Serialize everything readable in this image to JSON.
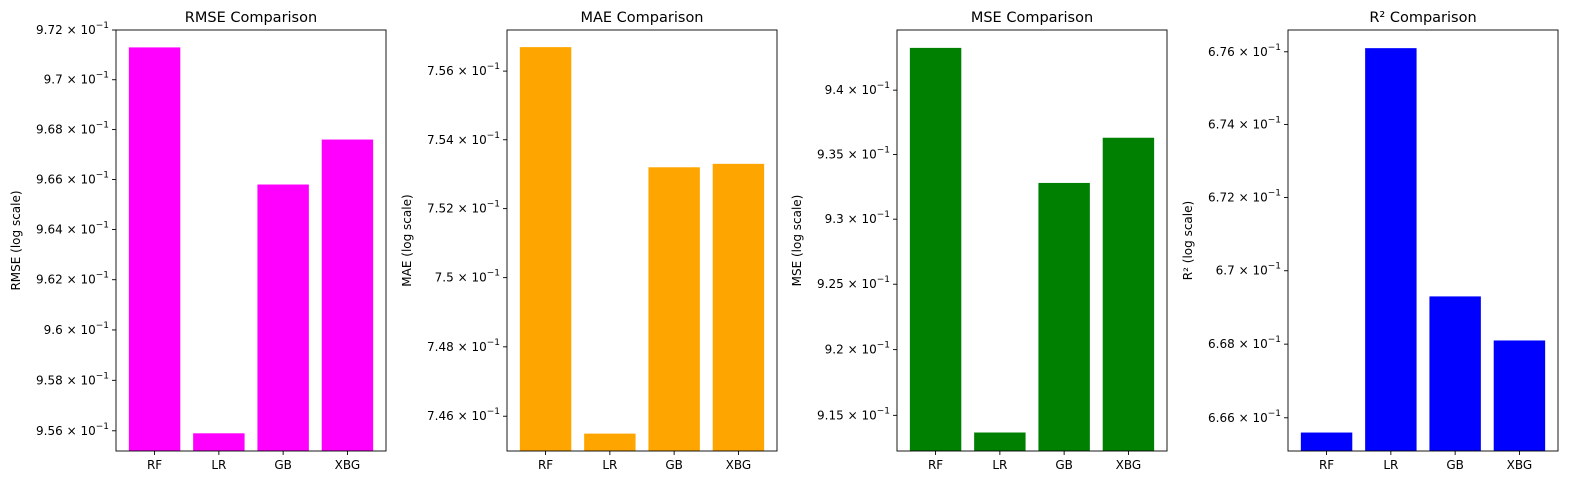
{
  "chart_data": [
    {
      "type": "bar",
      "title": "RMSE Comparison",
      "ylabel": "RMSE (log scale)",
      "yscale": "log",
      "categories": [
        "RF",
        "LR",
        "GB",
        "XBG"
      ],
      "values": [
        0.9713,
        0.9559,
        0.9658,
        0.9676
      ],
      "ylim": [
        0.9552,
        0.972
      ],
      "yticks": [
        0.956,
        0.958,
        0.96,
        0.962,
        0.964,
        0.966,
        0.968,
        0.97,
        0.972
      ],
      "ytick_mantissas": [
        "9.56",
        "9.58",
        "9.6",
        "9.62",
        "9.64",
        "9.66",
        "9.68",
        "9.7",
        "9.72"
      ],
      "ytick_exponent": "−1",
      "color": "#ff00ff",
      "grid": false
    },
    {
      "type": "bar",
      "title": "MAE Comparison",
      "ylabel": "MAE (log scale)",
      "yscale": "log",
      "categories": [
        "RF",
        "LR",
        "GB",
        "XBG"
      ],
      "values": [
        0.7567,
        0.7455,
        0.7532,
        0.7533
      ],
      "ylim": [
        0.745,
        0.7572
      ],
      "yticks": [
        0.746,
        0.748,
        0.75,
        0.752,
        0.754,
        0.756
      ],
      "ytick_mantissas": [
        "7.46",
        "7.48",
        "7.5",
        "7.52",
        "7.54",
        "7.56"
      ],
      "ytick_exponent": "−1",
      "color": "#ffa500",
      "grid": false
    },
    {
      "type": "bar",
      "title": "MSE Comparison",
      "ylabel": "MSE (log scale)",
      "yscale": "log",
      "categories": [
        "RF",
        "LR",
        "GB",
        "XBG"
      ],
      "values": [
        0.9433,
        0.9137,
        0.9328,
        0.9363
      ],
      "ylim": [
        0.9123,
        0.9447
      ],
      "yticks": [
        0.915,
        0.92,
        0.925,
        0.93,
        0.935,
        0.94
      ],
      "ytick_mantissas": [
        "9.15",
        "9.2",
        "9.25",
        "9.3",
        "9.35",
        "9.4"
      ],
      "ytick_exponent": "−1",
      "color": "#008000",
      "grid": false
    },
    {
      "type": "bar",
      "title": "R² Comparison",
      "ylabel": "R² (log scale)",
      "yscale": "log",
      "categories": [
        "RF",
        "LR",
        "GB",
        "XBG"
      ],
      "values": [
        0.6656,
        0.6761,
        0.6693,
        0.6681
      ],
      "ylim": [
        0.6651,
        0.6766
      ],
      "yticks": [
        0.666,
        0.668,
        0.67,
        0.672,
        0.674,
        0.676
      ],
      "ytick_mantissas": [
        "6.66",
        "6.68",
        "6.7",
        "6.72",
        "6.74",
        "6.76"
      ],
      "ytick_exponent": "−1",
      "color": "#0000ff",
      "grid": false
    }
  ]
}
